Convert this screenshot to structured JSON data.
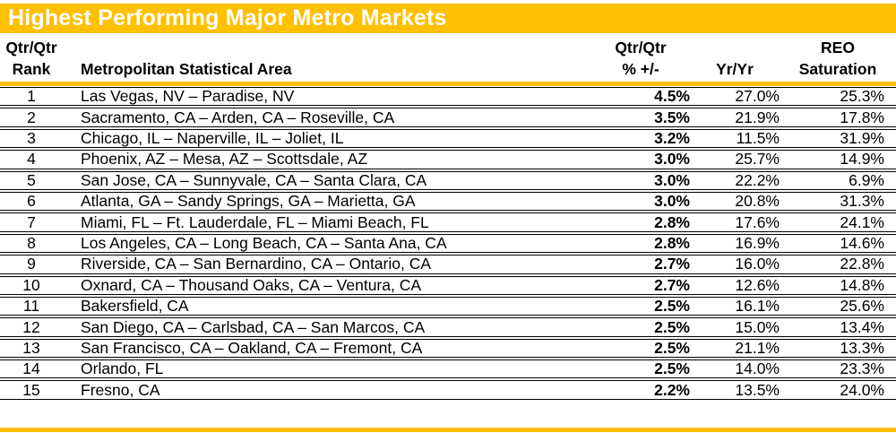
{
  "title_bar": {
    "title": "Highest Performing Major Metro Markets"
  },
  "colors": {
    "gold": "#FFC000",
    "title_text": "#FFFFFF",
    "row_border": "#000000"
  },
  "table": {
    "headers": {
      "rank_line1": "Qtr/Qtr",
      "rank_line2": "Rank",
      "metro": "Metropolitan Statistical Area",
      "qtr_line1": "Qtr/Qtr",
      "qtr_line2": "% +/-",
      "yr": "Yr/Yr",
      "reo_line1": "REO",
      "reo_line2": "Saturation"
    },
    "rows": [
      {
        "rank": "1",
        "metro": "Las Vegas, NV – Paradise, NV",
        "qtr": "4.5%",
        "yr": "27.0%",
        "reo": "25.3%"
      },
      {
        "rank": "2",
        "metro": "Sacramento, CA – Arden, CA – Roseville, CA",
        "qtr": "3.5%",
        "yr": "21.9%",
        "reo": "17.8%"
      },
      {
        "rank": "3",
        "metro": "Chicago, IL – Naperville, IL – Joliet, IL",
        "qtr": "3.2%",
        "yr": "11.5%",
        "reo": "31.9%"
      },
      {
        "rank": "4",
        "metro": "Phoenix, AZ – Mesa, AZ – Scottsdale, AZ",
        "qtr": "3.0%",
        "yr": "25.7%",
        "reo": "14.9%"
      },
      {
        "rank": "5",
        "metro": "San Jose, CA – Sunnyvale, CA – Santa Clara, CA",
        "qtr": "3.0%",
        "yr": "22.2%",
        "reo": "6.9%"
      },
      {
        "rank": "6",
        "metro": "Atlanta, GA – Sandy Springs, GA – Marietta, GA",
        "qtr": "3.0%",
        "yr": "20.8%",
        "reo": "31.3%"
      },
      {
        "rank": "7",
        "metro": "Miami, FL – Ft. Lauderdale, FL – Miami Beach, FL",
        "qtr": "2.8%",
        "yr": "17.6%",
        "reo": "24.1%"
      },
      {
        "rank": "8",
        "metro": "Los Angeles, CA – Long Beach, CA – Santa Ana, CA",
        "qtr": "2.8%",
        "yr": "16.9%",
        "reo": "14.6%"
      },
      {
        "rank": "9",
        "metro": "Riverside, CA – San Bernardino, CA – Ontario, CA",
        "qtr": "2.7%",
        "yr": "16.0%",
        "reo": "22.8%"
      },
      {
        "rank": "10",
        "metro": "Oxnard, CA – Thousand Oaks, CA – Ventura, CA",
        "qtr": "2.7%",
        "yr": "12.6%",
        "reo": "14.8%"
      },
      {
        "rank": "11",
        "metro": "Bakersfield, CA",
        "qtr": "2.5%",
        "yr": "16.1%",
        "reo": "25.6%"
      },
      {
        "rank": "12",
        "metro": "San Diego, CA – Carlsbad, CA – San Marcos, CA",
        "qtr": "2.5%",
        "yr": "15.0%",
        "reo": "13.4%"
      },
      {
        "rank": "13",
        "metro": "San Francisco, CA – Oakland, CA – Fremont, CA",
        "qtr": "2.5%",
        "yr": "21.1%",
        "reo": "13.3%"
      },
      {
        "rank": "14",
        "metro": "Orlando, FL",
        "qtr": "2.5%",
        "yr": "14.0%",
        "reo": "23.3%"
      },
      {
        "rank": "15",
        "metro": "Fresno, CA",
        "qtr": "2.2%",
        "yr": "13.5%",
        "reo": "24.0%"
      }
    ]
  },
  "chart_data": {
    "type": "table",
    "title": "Highest Performing Major Metro Markets",
    "columns": [
      "Qtr/Qtr Rank",
      "Metropolitan Statistical Area",
      "Qtr/Qtr % +/-",
      "Yr/Yr",
      "REO Saturation"
    ],
    "rows": [
      [
        1,
        "Las Vegas, NV – Paradise, NV",
        "4.5%",
        "27.0%",
        "25.3%"
      ],
      [
        2,
        "Sacramento, CA – Arden, CA – Roseville, CA",
        "3.5%",
        "21.9%",
        "17.8%"
      ],
      [
        3,
        "Chicago, IL – Naperville, IL – Joliet, IL",
        "3.2%",
        "11.5%",
        "31.9%"
      ],
      [
        4,
        "Phoenix, AZ – Mesa, AZ – Scottsdale, AZ",
        "3.0%",
        "25.7%",
        "14.9%"
      ],
      [
        5,
        "San Jose, CA – Sunnyvale, CA – Santa Clara, CA",
        "3.0%",
        "22.2%",
        "6.9%"
      ],
      [
        6,
        "Atlanta, GA – Sandy Springs, GA – Marietta, GA",
        "3.0%",
        "20.8%",
        "31.3%"
      ],
      [
        7,
        "Miami, FL – Ft. Lauderdale, FL – Miami Beach, FL",
        "2.8%",
        "17.6%",
        "24.1%"
      ],
      [
        8,
        "Los Angeles, CA – Long Beach, CA – Santa Ana, CA",
        "2.8%",
        "16.9%",
        "14.6%"
      ],
      [
        9,
        "Riverside, CA – San Bernardino, CA – Ontario, CA",
        "2.7%",
        "16.0%",
        "22.8%"
      ],
      [
        10,
        "Oxnard, CA – Thousand Oaks, CA – Ventura, CA",
        "2.7%",
        "12.6%",
        "14.8%"
      ],
      [
        11,
        "Bakersfield, CA",
        "2.5%",
        "16.1%",
        "25.6%"
      ],
      [
        12,
        "San Diego, CA – Carlsbad, CA – San Marcos, CA",
        "2.5%",
        "15.0%",
        "13.4%"
      ],
      [
        13,
        "San Francisco, CA – Oakland, CA – Fremont, CA",
        "2.5%",
        "21.1%",
        "13.3%"
      ],
      [
        14,
        "Orlando, FL",
        "2.5%",
        "14.0%",
        "23.3%"
      ],
      [
        15,
        "Fresno, CA",
        "2.2%",
        "13.5%",
        "24.0%"
      ]
    ]
  }
}
